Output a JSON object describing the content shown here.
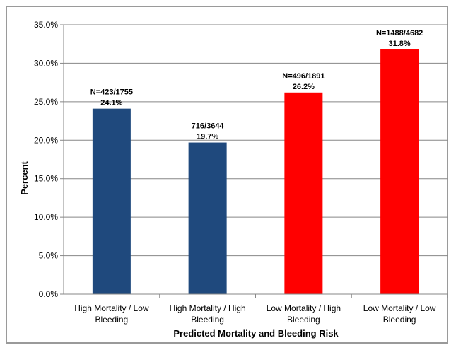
{
  "chart_data": {
    "type": "bar",
    "title": "",
    "xlabel": "Predicted Mortality and Bleeding Risk",
    "ylabel": "Percent",
    "ylim": [
      0,
      35
    ],
    "yticks": [
      "0.0%",
      "5.0%",
      "10.0%",
      "15.0%",
      "20.0%",
      "25.0%",
      "30.0%",
      "35.0%"
    ],
    "grid": true,
    "categories": [
      [
        "High Mortality / Low",
        "Bleeding"
      ],
      [
        "High Mortality / High",
        "Bleeding"
      ],
      [
        "Low Mortality / High",
        "Bleeding"
      ],
      [
        "Low Mortality / Low",
        "Bleeding"
      ]
    ],
    "values": [
      24.1,
      19.7,
      26.2,
      31.8
    ],
    "counts": [
      "N=423/1755",
      "716/3644",
      "N=496/1891",
      "N=1488/4682"
    ],
    "value_labels": [
      "24.1%",
      "19.7%",
      "26.2%",
      "31.8%"
    ],
    "colors": [
      "#1f497d",
      "#1f497d",
      "#ff0000",
      "#ff0000"
    ]
  }
}
